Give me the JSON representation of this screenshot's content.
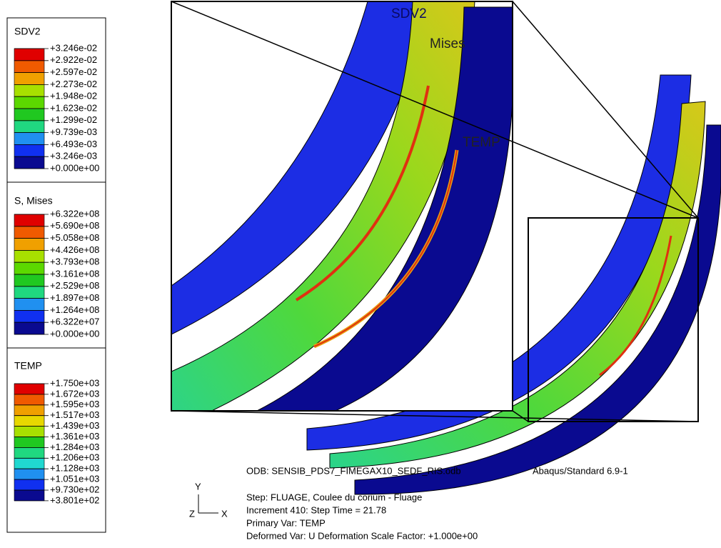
{
  "legends": [
    {
      "title": "SDV2",
      "labels": [
        "+3.246e-02",
        "+2.922e-02",
        "+2.597e-02",
        "+2.273e-02",
        "+1.948e-02",
        "+1.623e-02",
        "+1.299e-02",
        "+9.739e-03",
        "+6.493e-03",
        "+3.246e-03",
        "+0.000e+00"
      ]
    },
    {
      "title": "S, Mises",
      "labels": [
        "+6.322e+08",
        "+5.690e+08",
        "+5.058e+08",
        "+4.426e+08",
        "+3.793e+08",
        "+3.161e+08",
        "+2.529e+08",
        "+1.897e+08",
        "+1.264e+08",
        "+6.322e+07",
        "+0.000e+00"
      ]
    },
    {
      "title": "TEMP",
      "labels": [
        "+1.750e+03",
        "+1.672e+03",
        "+1.595e+03",
        "+1.517e+03",
        "+1.439e+03",
        "+1.361e+03",
        "+1.284e+03",
        "+1.206e+03",
        "+1.128e+03",
        "+1.051e+03",
        "+9.730e+02",
        "+3.801e+02"
      ]
    }
  ],
  "viewport_labels": [
    "SDV2",
    "Mises",
    "TEMP"
  ],
  "info": {
    "odb": "ODB: SENSIB_PDS7_FIMEGAX10_SEDF_RIS.odb",
    "solver": "Abaqus/Standard 6.9-1",
    "step": "Step: FLUAGE, Coulee du corium - Fluage",
    "increment": "Increment    410: Step Time =    21.78",
    "primary_var": "Primary Var: TEMP",
    "deformed_var": "Deformed Var: U   Deformation Scale Factor: +1.000e+00"
  },
  "triad": {
    "y": "Y",
    "z": "Z",
    "x": "X"
  }
}
